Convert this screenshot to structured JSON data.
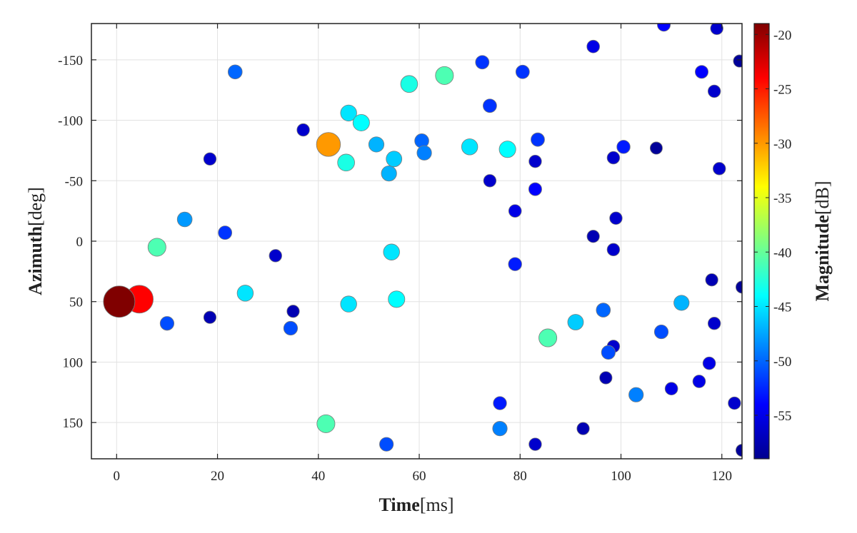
{
  "chart_data": {
    "type": "scatter",
    "title": "",
    "xlabel": {
      "bold": "Time",
      "unit": "[ms]"
    },
    "ylabel": {
      "bold": "Azimuth",
      "unit": "[deg]"
    },
    "xlim": [
      -5,
      124
    ],
    "ylim": [
      -180,
      180
    ],
    "y_reversed": true,
    "x_ticks": [
      0,
      20,
      40,
      60,
      80,
      100,
      120
    ],
    "y_ticks": [
      -150,
      -100,
      -50,
      0,
      50,
      100,
      150
    ],
    "grid": true,
    "colorbar": {
      "label_bold": "Magnitude",
      "label_unit": "[dB]",
      "colormap": "jet",
      "range": [
        -59,
        -19
      ],
      "ticks": [
        -20,
        -25,
        -30,
        -35,
        -40,
        -45,
        -50,
        -55
      ]
    },
    "points": [
      {
        "x": 0.5,
        "y": 50,
        "mag": -19
      },
      {
        "x": 4.5,
        "y": 48,
        "mag": -24
      },
      {
        "x": 8,
        "y": 5,
        "mag": -41
      },
      {
        "x": 10,
        "y": 68,
        "mag": -51
      },
      {
        "x": 13.5,
        "y": -18,
        "mag": -48
      },
      {
        "x": 18.5,
        "y": 63,
        "mag": -57
      },
      {
        "x": 18.5,
        "y": -68,
        "mag": -56
      },
      {
        "x": 21.5,
        "y": -7,
        "mag": -52
      },
      {
        "x": 23.5,
        "y": -140,
        "mag": -50
      },
      {
        "x": 25.5,
        "y": 43,
        "mag": -45
      },
      {
        "x": 31.5,
        "y": 12,
        "mag": -56
      },
      {
        "x": 34.5,
        "y": 72,
        "mag": -51
      },
      {
        "x": 35,
        "y": 58,
        "mag": -57
      },
      {
        "x": 37,
        "y": -92,
        "mag": -56
      },
      {
        "x": 41.5,
        "y": 151,
        "mag": -41
      },
      {
        "x": 42,
        "y": -80,
        "mag": -30
      },
      {
        "x": 45.5,
        "y": -65,
        "mag": -43
      },
      {
        "x": 46,
        "y": -106,
        "mag": -45
      },
      {
        "x": 46,
        "y": 52,
        "mag": -45
      },
      {
        "x": 48.5,
        "y": -98,
        "mag": -44
      },
      {
        "x": 51.5,
        "y": -80,
        "mag": -47
      },
      {
        "x": 53.5,
        "y": 168,
        "mag": -51
      },
      {
        "x": 54,
        "y": -56,
        "mag": -47
      },
      {
        "x": 54.5,
        "y": 9,
        "mag": -45
      },
      {
        "x": 55,
        "y": -68,
        "mag": -46
      },
      {
        "x": 55.5,
        "y": 48,
        "mag": -44
      },
      {
        "x": 58,
        "y": -130,
        "mag": -43
      },
      {
        "x": 60.5,
        "y": -83,
        "mag": -50
      },
      {
        "x": 61,
        "y": -73,
        "mag": -49
      },
      {
        "x": 65,
        "y": -137,
        "mag": -41
      },
      {
        "x": 70,
        "y": -78,
        "mag": -45
      },
      {
        "x": 72.5,
        "y": -148,
        "mag": -52
      },
      {
        "x": 74,
        "y": -112,
        "mag": -52
      },
      {
        "x": 74,
        "y": -50,
        "mag": -56
      },
      {
        "x": 76,
        "y": 134,
        "mag": -53
      },
      {
        "x": 76,
        "y": 155,
        "mag": -49
      },
      {
        "x": 77.5,
        "y": -76,
        "mag": -44
      },
      {
        "x": 79,
        "y": -25,
        "mag": -55
      },
      {
        "x": 79,
        "y": 19,
        "mag": -53
      },
      {
        "x": 80.5,
        "y": -140,
        "mag": -52
      },
      {
        "x": 83,
        "y": -66,
        "mag": -56
      },
      {
        "x": 83,
        "y": 168,
        "mag": -56
      },
      {
        "x": 83,
        "y": -43,
        "mag": -54
      },
      {
        "x": 83.5,
        "y": -84,
        "mag": -52
      },
      {
        "x": 85.5,
        "y": 80,
        "mag": -41
      },
      {
        "x": 91,
        "y": 67,
        "mag": -46
      },
      {
        "x": 92.5,
        "y": 155,
        "mag": -57
      },
      {
        "x": 94.5,
        "y": -161,
        "mag": -55
      },
      {
        "x": 94.5,
        "y": -4,
        "mag": -57
      },
      {
        "x": 96.5,
        "y": 57,
        "mag": -50
      },
      {
        "x": 97,
        "y": 113,
        "mag": -57
      },
      {
        "x": 97.5,
        "y": 92,
        "mag": -51
      },
      {
        "x": 98.5,
        "y": 87,
        "mag": -56
      },
      {
        "x": 98.5,
        "y": 7,
        "mag": -56
      },
      {
        "x": 98.5,
        "y": -69,
        "mag": -56
      },
      {
        "x": 99,
        "y": -19,
        "mag": -56
      },
      {
        "x": 100.5,
        "y": -78,
        "mag": -53
      },
      {
        "x": 103,
        "y": 127,
        "mag": -49
      },
      {
        "x": 107,
        "y": -77,
        "mag": -58
      },
      {
        "x": 108,
        "y": 75,
        "mag": -51
      },
      {
        "x": 108.5,
        "y": -179,
        "mag": -54
      },
      {
        "x": 110,
        "y": 122,
        "mag": -55
      },
      {
        "x": 112,
        "y": 51,
        "mag": -47
      },
      {
        "x": 115.5,
        "y": 116,
        "mag": -55
      },
      {
        "x": 116,
        "y": -140,
        "mag": -54
      },
      {
        "x": 117.5,
        "y": 101,
        "mag": -55
      },
      {
        "x": 118,
        "y": 32,
        "mag": -57
      },
      {
        "x": 118.5,
        "y": -124,
        "mag": -56
      },
      {
        "x": 118.5,
        "y": 68,
        "mag": -56
      },
      {
        "x": 119,
        "y": -176,
        "mag": -56
      },
      {
        "x": 119.5,
        "y": -60,
        "mag": -56
      },
      {
        "x": 122.5,
        "y": 134,
        "mag": -56
      },
      {
        "x": 123.5,
        "y": -149,
        "mag": -58
      },
      {
        "x": 124,
        "y": 38,
        "mag": -58
      },
      {
        "x": 124,
        "y": 173,
        "mag": -58
      }
    ]
  }
}
